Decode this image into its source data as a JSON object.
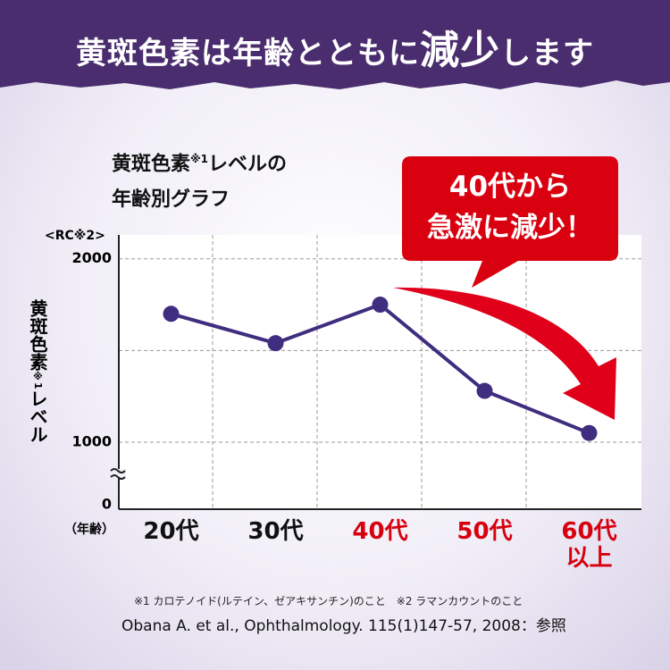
{
  "header": {
    "title_parts": [
      "黄斑色素は年齢とともに",
      "減少",
      "します"
    ]
  },
  "chart_data": {
    "type": "line",
    "title_parts": [
      "黄斑色素",
      "※1",
      "レベルの",
      "年齢別グラフ"
    ],
    "y_unit": "<RC※2>",
    "y_label_parts": [
      "黄斑色素",
      "※1",
      "レベル"
    ],
    "x_unit": "（年齢）",
    "categories": [
      "20代",
      "30代",
      "40代",
      "50代",
      "60代\n以上"
    ],
    "category_colors": [
      "#111111",
      "#111111",
      "#d7000f",
      "#d7000f",
      "#d7000f"
    ],
    "series": [
      {
        "name": "黄斑色素レベル",
        "color": "#3f2d7f",
        "values": [
          1700,
          1540,
          1750,
          1280,
          1050
        ]
      }
    ],
    "ylim": [
      0,
      2130
    ],
    "yticks": [
      0,
      1000,
      2000
    ],
    "minor_yticks": [
      1500
    ],
    "y_break": [
      0,
      1000
    ],
    "grid": true,
    "callout": "40代から\n急激に減少！"
  },
  "footnotes": [
    "※1 カロテノイド(ルテイン、ゼアキサンチン)のこと　※2 ラマンカウントのこと",
    "Obana A. et al., Ophthalmology. 115(1)147-57, 2008：参照"
  ]
}
